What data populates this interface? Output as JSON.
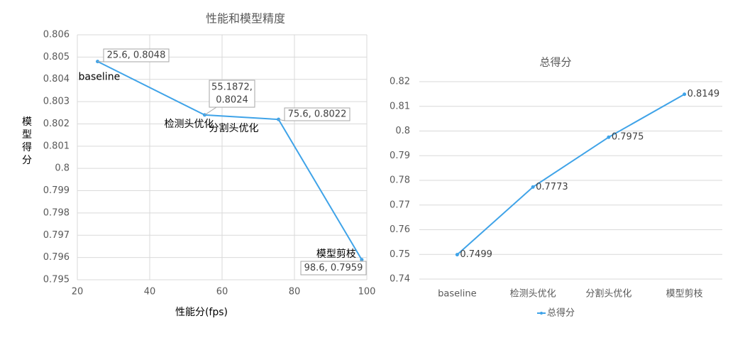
{
  "chart_data": [
    {
      "type": "scatter",
      "title": "性能和模型精度",
      "xlabel": "性能分(fps)",
      "ylabel": "模型得分",
      "xlim": [
        20,
        100
      ],
      "ylim": [
        0.795,
        0.806
      ],
      "x_ticks": [
        "20",
        "40",
        "60",
        "80",
        "100"
      ],
      "y_ticks": [
        "0.795",
        "0.796",
        "0.797",
        "0.798",
        "0.799",
        "0.8",
        "0.801",
        "0.802",
        "0.803",
        "0.804",
        "0.805",
        "0.806"
      ],
      "grid": true,
      "color": "#3fa3e8",
      "points": [
        {
          "name": "baseline",
          "x": 25.6,
          "y": 0.8048,
          "label": "25.6, 0.8048"
        },
        {
          "name": "检测头优化",
          "x": 55.1872,
          "y": 0.8024,
          "label": "55.1872, 0.8024"
        },
        {
          "name": "分割头优化",
          "x": 75.6,
          "y": 0.8022,
          "label": "75.6, 0.8022"
        },
        {
          "name": "模型剪枝",
          "x": 98.6,
          "y": 0.7959,
          "label": "98.6, 0.7959"
        }
      ]
    },
    {
      "type": "line",
      "title": "总得分",
      "categories": [
        "baseline",
        "检测头优化",
        "分割头优化",
        "模型剪枝"
      ],
      "series": [
        {
          "name": "总得分",
          "values": [
            0.7499,
            0.7773,
            0.7975,
            0.8149
          ],
          "labels": [
            "0.7499",
            "0.7773",
            "0.7975",
            "0.8149"
          ]
        }
      ],
      "ylim": [
        0.74,
        0.82
      ],
      "y_ticks": [
        "0.74",
        "0.75",
        "0.76",
        "0.77",
        "0.78",
        "0.79",
        "0.8",
        "0.81",
        "0.82"
      ],
      "grid": true,
      "legend": "bottom",
      "color": "#3fa3e8"
    }
  ]
}
